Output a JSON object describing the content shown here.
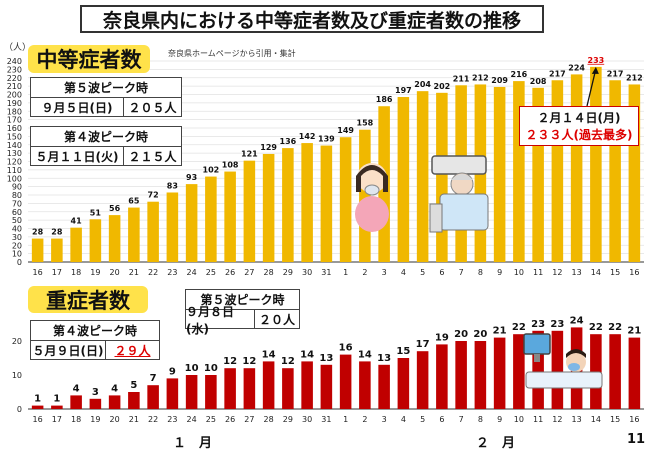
{
  "title": "奈良県内における中等症者数及び重症者数の推移",
  "unit_label": "（人）",
  "source_note": "奈良県ホームページから引用・集計",
  "moderate": {
    "label": "中等症者数",
    "peak5": {
      "title": "第５波ピーク時",
      "date": "９月５日(日)",
      "count": "２０５人"
    },
    "peak4": {
      "title": "第４波ピーク時",
      "date": "５月１１日(火)",
      "count": "２１５人"
    },
    "callout": {
      "date": "２月１４日(月)",
      "count": "２３３人(過去最多)"
    }
  },
  "severe": {
    "label": "重症者数",
    "peak5": {
      "title": "第５波ピーク時",
      "date": "９月８日(水)",
      "count": "２０人"
    },
    "peak4": {
      "title": "第４波ピーク時",
      "date": "５月９日(日)",
      "count": "２９人"
    }
  },
  "months": {
    "jan": "１　月",
    "feb": "２　月"
  },
  "page_number": "11",
  "chart_data": [
    {
      "type": "bar",
      "categories": [
        "16",
        "17",
        "18",
        "19",
        "20",
        "21",
        "22",
        "23",
        "24",
        "25",
        "26",
        "27",
        "28",
        "29",
        "30",
        "31",
        "1",
        "2",
        "3",
        "4",
        "5",
        "6",
        "7",
        "8",
        "9",
        "10",
        "11",
        "12",
        "13",
        "14",
        "15",
        "16"
      ],
      "values": [
        28,
        28,
        41,
        51,
        56,
        65,
        72,
        83,
        93,
        102,
        108,
        121,
        129,
        136,
        142,
        139,
        149,
        158,
        186,
        197,
        204,
        202,
        211,
        212,
        209,
        216,
        208,
        217,
        224,
        233,
        217,
        212
      ],
      "ylim": [
        0,
        240
      ],
      "yticks": [
        0,
        10,
        20,
        30,
        40,
        50,
        60,
        70,
        80,
        90,
        100,
        110,
        120,
        130,
        140,
        150,
        160,
        170,
        180,
        190,
        200,
        210,
        220,
        230,
        240
      ],
      "highlight_index": 29,
      "color": "#f0b800",
      "highlight_label_color": "#dd0000",
      "grid": true
    },
    {
      "type": "bar",
      "categories": [
        "16",
        "17",
        "18",
        "19",
        "20",
        "21",
        "22",
        "23",
        "24",
        "25",
        "26",
        "27",
        "28",
        "29",
        "30",
        "31",
        "1",
        "2",
        "3",
        "4",
        "5",
        "6",
        "7",
        "8",
        "9",
        "10",
        "11",
        "12",
        "13",
        "14",
        "15",
        "16"
      ],
      "values": [
        1,
        1,
        4,
        3,
        4,
        5,
        7,
        9,
        10,
        10,
        12,
        12,
        14,
        12,
        14,
        13,
        16,
        14,
        13,
        15,
        17,
        19,
        20,
        20,
        21,
        22,
        23,
        23,
        24,
        22,
        22,
        21
      ],
      "ylim": [
        0,
        25
      ],
      "yticks": [
        0,
        10,
        20
      ],
      "color": "#c00000",
      "grid": false
    }
  ]
}
